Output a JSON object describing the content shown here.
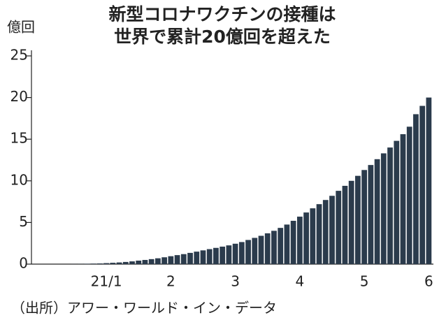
{
  "chart_data": {
    "type": "bar",
    "title_lines": [
      "新型コロナワクチンの接種は",
      "世界で累計20億回を超えた"
    ],
    "y_label": "億回",
    "source": "（出所）アワー・ワールド・イン・データ",
    "categories": [
      null,
      null,
      null,
      null,
      null,
      null,
      null,
      null,
      null,
      null,
      null,
      "21/1",
      null,
      null,
      null,
      null,
      null,
      null,
      null,
      null,
      null,
      "2",
      null,
      null,
      null,
      null,
      null,
      null,
      null,
      null,
      null,
      "3",
      null,
      null,
      null,
      null,
      null,
      null,
      null,
      null,
      null,
      "4",
      null,
      null,
      null,
      null,
      null,
      null,
      null,
      null,
      null,
      "5",
      null,
      null,
      null,
      null,
      null,
      null,
      null,
      null,
      null,
      "6"
    ],
    "values": [
      0,
      0,
      0,
      0,
      0,
      0,
      0.01,
      0.02,
      0.04,
      0.06,
      0.08,
      0.12,
      0.16,
      0.2,
      0.26,
      0.33,
      0.42,
      0.5,
      0.6,
      0.7,
      0.82,
      0.95,
      1.08,
      1.2,
      1.35,
      1.5,
      1.65,
      1.8,
      1.95,
      2.1,
      2.25,
      2.45,
      2.65,
      2.9,
      3.15,
      3.4,
      3.7,
      4.0,
      4.35,
      4.75,
      5.2,
      5.7,
      6.2,
      6.7,
      7.2,
      7.7,
      8.2,
      8.8,
      9.4,
      10.0,
      10.6,
      11.3,
      11.9,
      12.6,
      13.3,
      14.0,
      14.8,
      15.6,
      16.5,
      18.0,
      19.0,
      20.0
    ],
    "color": "#2b3b4c",
    "ylim": [
      0,
      25
    ],
    "yticks": [
      0,
      5,
      10,
      15,
      20,
      25
    ],
    "grid": false
  }
}
